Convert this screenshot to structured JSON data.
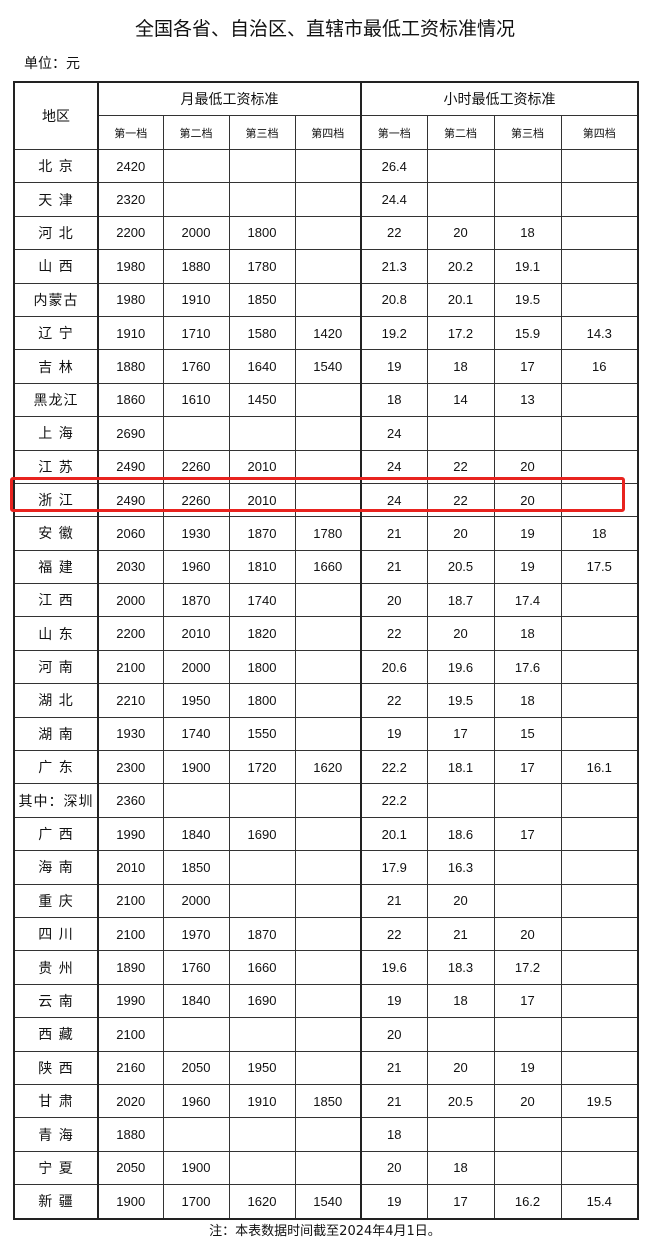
{
  "title": "全国各省、自治区、直辖市最低工资标准情况",
  "unit": "单位：元",
  "headers": {
    "region": "地区",
    "monthly": "月最低工资标准",
    "hourly": "小时最低工资标准",
    "tiers": [
      "第一档",
      "第二档",
      "第三档",
      "第四档"
    ]
  },
  "highlight_color": "#e8231f",
  "highlighted_region": "浙  江",
  "rows": [
    {
      "region": "北  京",
      "monthly": [
        "2420",
        "",
        "",
        ""
      ],
      "hourly": [
        "26.4",
        "",
        "",
        ""
      ]
    },
    {
      "region": "天  津",
      "monthly": [
        "2320",
        "",
        "",
        ""
      ],
      "hourly": [
        "24.4",
        "",
        "",
        ""
      ]
    },
    {
      "region": "河  北",
      "monthly": [
        "2200",
        "2000",
        "1800",
        ""
      ],
      "hourly": [
        "22",
        "20",
        "18",
        ""
      ]
    },
    {
      "region": "山  西",
      "monthly": [
        "1980",
        "1880",
        "1780",
        ""
      ],
      "hourly": [
        "21.3",
        "20.2",
        "19.1",
        ""
      ]
    },
    {
      "region": "内蒙古",
      "monthly": [
        "1980",
        "1910",
        "1850",
        ""
      ],
      "hourly": [
        "20.8",
        "20.1",
        "19.5",
        ""
      ]
    },
    {
      "region": "辽  宁",
      "monthly": [
        "1910",
        "1710",
        "1580",
        "1420"
      ],
      "hourly": [
        "19.2",
        "17.2",
        "15.9",
        "14.3"
      ]
    },
    {
      "region": "吉  林",
      "monthly": [
        "1880",
        "1760",
        "1640",
        "1540"
      ],
      "hourly": [
        "19",
        "18",
        "17",
        "16"
      ]
    },
    {
      "region": "黑龙江",
      "monthly": [
        "1860",
        "1610",
        "1450",
        ""
      ],
      "hourly": [
        "18",
        "14",
        "13",
        ""
      ]
    },
    {
      "region": "上  海",
      "monthly": [
        "2690",
        "",
        "",
        ""
      ],
      "hourly": [
        "24",
        "",
        "",
        ""
      ]
    },
    {
      "region": "江  苏",
      "monthly": [
        "2490",
        "2260",
        "2010",
        ""
      ],
      "hourly": [
        "24",
        "22",
        "20",
        ""
      ]
    },
    {
      "region": "浙  江",
      "monthly": [
        "2490",
        "2260",
        "2010",
        ""
      ],
      "hourly": [
        "24",
        "22",
        "20",
        ""
      ]
    },
    {
      "region": "安  徽",
      "monthly": [
        "2060",
        "1930",
        "1870",
        "1780"
      ],
      "hourly": [
        "21",
        "20",
        "19",
        "18"
      ]
    },
    {
      "region": "福  建",
      "monthly": [
        "2030",
        "1960",
        "1810",
        "1660"
      ],
      "hourly": [
        "21",
        "20.5",
        "19",
        "17.5"
      ]
    },
    {
      "region": "江  西",
      "monthly": [
        "2000",
        "1870",
        "1740",
        ""
      ],
      "hourly": [
        "20",
        "18.7",
        "17.4",
        ""
      ]
    },
    {
      "region": "山  东",
      "monthly": [
        "2200",
        "2010",
        "1820",
        ""
      ],
      "hourly": [
        "22",
        "20",
        "18",
        ""
      ]
    },
    {
      "region": "河  南",
      "monthly": [
        "2100",
        "2000",
        "1800",
        ""
      ],
      "hourly": [
        "20.6",
        "19.6",
        "17.6",
        ""
      ]
    },
    {
      "region": "湖  北",
      "monthly": [
        "2210",
        "1950",
        "1800",
        ""
      ],
      "hourly": [
        "22",
        "19.5",
        "18",
        ""
      ]
    },
    {
      "region": "湖  南",
      "monthly": [
        "1930",
        "1740",
        "1550",
        ""
      ],
      "hourly": [
        "19",
        "17",
        "15",
        ""
      ]
    },
    {
      "region": "广  东",
      "monthly": [
        "2300",
        "1900",
        "1720",
        "1620"
      ],
      "hourly": [
        "22.2",
        "18.1",
        "17",
        "16.1"
      ]
    },
    {
      "region": "其中：深圳",
      "monthly": [
        "2360",
        "",
        "",
        ""
      ],
      "hourly": [
        "22.2",
        "",
        "",
        ""
      ]
    },
    {
      "region": "广  西",
      "monthly": [
        "1990",
        "1840",
        "1690",
        ""
      ],
      "hourly": [
        "20.1",
        "18.6",
        "17",
        ""
      ]
    },
    {
      "region": "海  南",
      "monthly": [
        "2010",
        "1850",
        "",
        ""
      ],
      "hourly": [
        "17.9",
        "16.3",
        "",
        ""
      ]
    },
    {
      "region": "重  庆",
      "monthly": [
        "2100",
        "2000",
        "",
        ""
      ],
      "hourly": [
        "21",
        "20",
        "",
        ""
      ]
    },
    {
      "region": "四  川",
      "monthly": [
        "2100",
        "1970",
        "1870",
        ""
      ],
      "hourly": [
        "22",
        "21",
        "20",
        ""
      ]
    },
    {
      "region": "贵  州",
      "monthly": [
        "1890",
        "1760",
        "1660",
        ""
      ],
      "hourly": [
        "19.6",
        "18.3",
        "17.2",
        ""
      ]
    },
    {
      "region": "云  南",
      "monthly": [
        "1990",
        "1840",
        "1690",
        ""
      ],
      "hourly": [
        "19",
        "18",
        "17",
        ""
      ]
    },
    {
      "region": "西  藏",
      "monthly": [
        "2100",
        "",
        "",
        ""
      ],
      "hourly": [
        "20",
        "",
        "",
        ""
      ]
    },
    {
      "region": "陕  西",
      "monthly": [
        "2160",
        "2050",
        "1950",
        ""
      ],
      "hourly": [
        "21",
        "20",
        "19",
        ""
      ]
    },
    {
      "region": "甘  肃",
      "monthly": [
        "2020",
        "1960",
        "1910",
        "1850"
      ],
      "hourly": [
        "21",
        "20.5",
        "20",
        "19.5"
      ]
    },
    {
      "region": "青  海",
      "monthly": [
        "1880",
        "",
        "",
        ""
      ],
      "hourly": [
        "18",
        "",
        "",
        ""
      ]
    },
    {
      "region": "宁  夏",
      "monthly": [
        "2050",
        "1900",
        "",
        ""
      ],
      "hourly": [
        "20",
        "18",
        "",
        ""
      ]
    },
    {
      "region": "新  疆",
      "monthly": [
        "1900",
        "1700",
        "1620",
        "1540"
      ],
      "hourly": [
        "19",
        "17",
        "16.2",
        "15.4"
      ]
    }
  ],
  "note": "注：本表数据时间截至2024年4月1日。"
}
